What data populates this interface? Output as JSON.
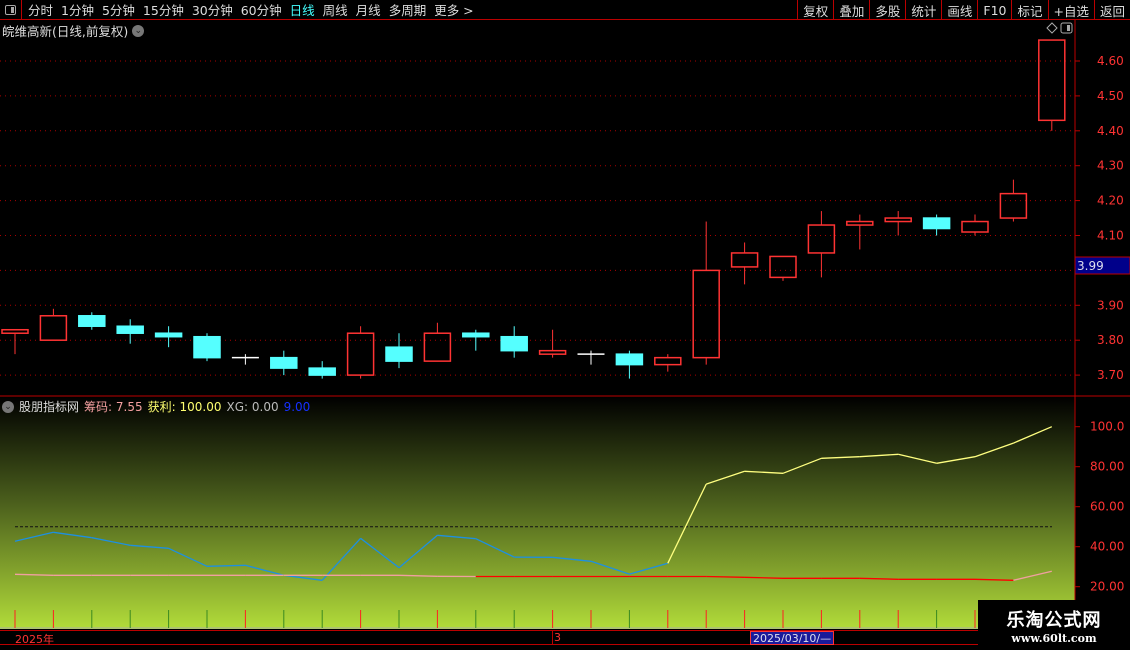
{
  "topbar": {
    "periods": [
      "分时",
      "1分钟",
      "5分钟",
      "15分钟",
      "30分钟",
      "60分钟",
      "日线",
      "周线",
      "月线",
      "多周期",
      "更多 >"
    ],
    "active_period": "日线",
    "buttons": [
      "复权",
      "叠加",
      "多股",
      "统计",
      "画线",
      "F10",
      "标记",
      "+自选",
      "返回"
    ]
  },
  "title": "皖维高新(日线,前复权)",
  "price_axis": {
    "ticks": [
      "4.60",
      "4.50",
      "4.40",
      "4.30",
      "4.20",
      "4.10",
      "3.90",
      "3.80",
      "3.70"
    ],
    "current": "3.99"
  },
  "indicator": {
    "name": "股朋指标网",
    "chip_label": "筹码:",
    "chip_value": "7.55",
    "profit_label": "获利:",
    "profit_value": "100.00",
    "xg_label": "XG:",
    "xg_value": "0.00",
    "extra_value": "9.00",
    "axis_ticks": [
      "100.0",
      "80.00",
      "60.00",
      "40.00",
      "20.00"
    ]
  },
  "time_axis": {
    "labels": [
      "2025年",
      "3"
    ],
    "cursor_date": "2025/03/10/—"
  },
  "watermark": {
    "line1": "乐淘公式网",
    "line2": "www.60lt.com"
  },
  "colors": {
    "up": "#ff3333",
    "down": "#55ffff",
    "doji": "#ffffff",
    "profit_low": "#1e90e0",
    "profit_high": "#ffff80",
    "chip_up": "#f0a0a0",
    "chip_down": "#ff0000",
    "accent": "#44ffff"
  },
  "chart_data": {
    "type": "candlestick",
    "ylim": [
      3.66,
      4.68
    ],
    "candles": [
      {
        "o": 3.82,
        "h": 3.83,
        "l": 3.76,
        "c": 3.83
      },
      {
        "o": 3.8,
        "h": 3.89,
        "l": 3.8,
        "c": 3.87
      },
      {
        "o": 3.87,
        "h": 3.88,
        "l": 3.83,
        "c": 3.84
      },
      {
        "o": 3.84,
        "h": 3.86,
        "l": 3.79,
        "c": 3.82
      },
      {
        "o": 3.82,
        "h": 3.84,
        "l": 3.78,
        "c": 3.81
      },
      {
        "o": 3.81,
        "h": 3.82,
        "l": 3.74,
        "c": 3.75
      },
      {
        "o": 3.75,
        "h": 3.76,
        "l": 3.73,
        "c": 3.75
      },
      {
        "o": 3.75,
        "h": 3.77,
        "l": 3.7,
        "c": 3.72
      },
      {
        "o": 3.72,
        "h": 3.74,
        "l": 3.69,
        "c": 3.7
      },
      {
        "o": 3.7,
        "h": 3.84,
        "l": 3.69,
        "c": 3.82
      },
      {
        "o": 3.78,
        "h": 3.82,
        "l": 3.72,
        "c": 3.74
      },
      {
        "o": 3.74,
        "h": 3.85,
        "l": 3.74,
        "c": 3.82
      },
      {
        "o": 3.82,
        "h": 3.83,
        "l": 3.77,
        "c": 3.81
      },
      {
        "o": 3.81,
        "h": 3.84,
        "l": 3.75,
        "c": 3.77
      },
      {
        "o": 3.76,
        "h": 3.83,
        "l": 3.75,
        "c": 3.77
      },
      {
        "o": 3.76,
        "h": 3.77,
        "l": 3.73,
        "c": 3.76
      },
      {
        "o": 3.76,
        "h": 3.77,
        "l": 3.69,
        "c": 3.73
      },
      {
        "o": 3.73,
        "h": 3.76,
        "l": 3.71,
        "c": 3.75
      },
      {
        "o": 3.75,
        "h": 4.14,
        "l": 3.73,
        "c": 4.0
      },
      {
        "o": 4.01,
        "h": 4.08,
        "l": 3.96,
        "c": 4.05
      },
      {
        "o": 3.98,
        "h": 4.04,
        "l": 3.97,
        "c": 4.04
      },
      {
        "o": 4.05,
        "h": 4.17,
        "l": 3.98,
        "c": 4.13
      },
      {
        "o": 4.13,
        "h": 4.16,
        "l": 4.06,
        "c": 4.14
      },
      {
        "o": 4.14,
        "h": 4.17,
        "l": 4.1,
        "c": 4.15
      },
      {
        "o": 4.15,
        "h": 4.16,
        "l": 4.1,
        "c": 4.12
      },
      {
        "o": 4.11,
        "h": 4.16,
        "l": 4.1,
        "c": 4.14
      },
      {
        "o": 4.15,
        "h": 4.26,
        "l": 4.14,
        "c": 4.22
      },
      {
        "o": 4.43,
        "h": 4.66,
        "l": 4.4,
        "c": 4.66
      }
    ],
    "indicator": {
      "ylim": [
        15,
        107
      ],
      "reference_line": 50,
      "profit": [
        42.7,
        47.2,
        44.5,
        40.7,
        39.2,
        30.2,
        30.7,
        25.7,
        23.2,
        44.2,
        29.5,
        45.7,
        44.0,
        34.8,
        34.7,
        32.7,
        26.3,
        31.7,
        71.3,
        77.7,
        76.7,
        84.2,
        85.0,
        86.2,
        81.7,
        85.0,
        91.8,
        100.0
      ],
      "chip": [
        26.2,
        25.7,
        25.7,
        25.7,
        25.7,
        25.7,
        25.7,
        25.7,
        25.7,
        25.7,
        25.7,
        25.2,
        25.1,
        25.1,
        25.1,
        25.1,
        25.1,
        25.1,
        25.1,
        24.7,
        24.2,
        24.2,
        24.2,
        23.7,
        23.7,
        23.7,
        23.2,
        27.7
      ]
    }
  }
}
